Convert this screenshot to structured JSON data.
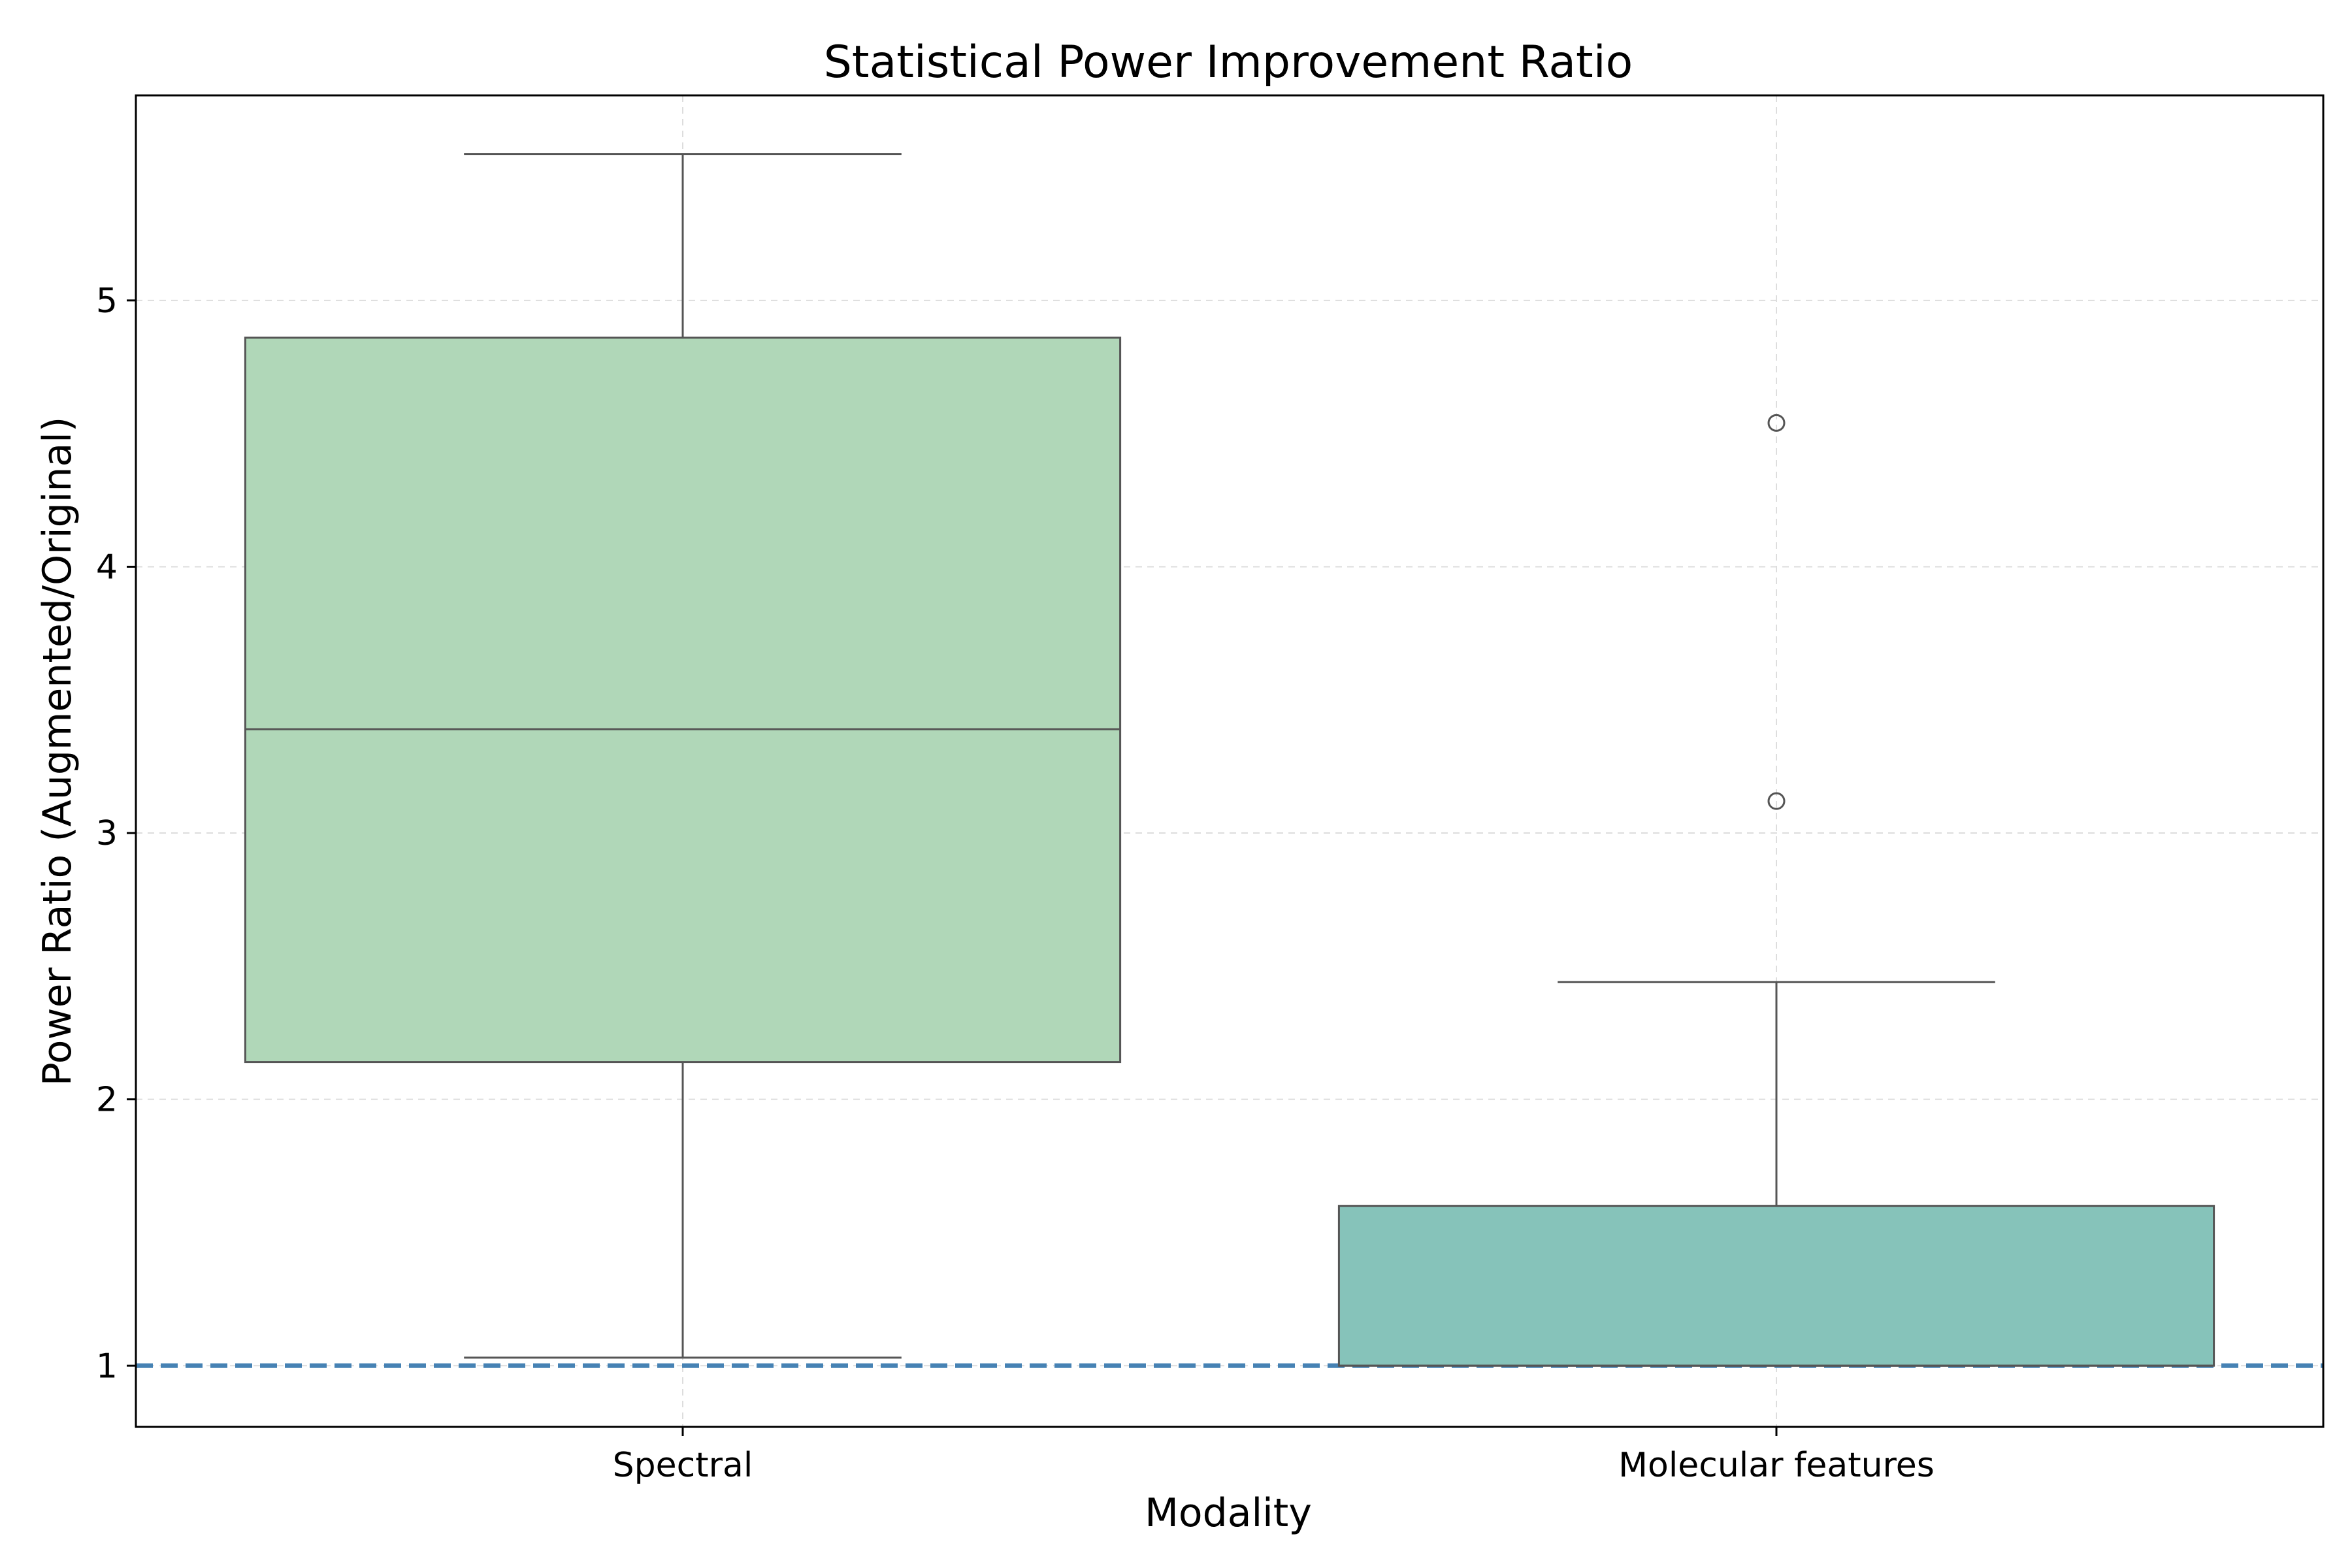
{
  "chart_data": {
    "type": "box",
    "title": "Statistical Power Improvement Ratio",
    "xlabel": "Modality",
    "ylabel": "Power Ratio (Augmented/Original)",
    "ylim": [
      0.77,
      5.77
    ],
    "yticks": [
      1,
      2,
      3,
      4,
      5
    ],
    "grid": true,
    "reference_line": {
      "y": 1.0,
      "style": "dashed",
      "color": "#4682b4"
    },
    "categories": [
      "Spectral",
      "Molecular features"
    ],
    "boxes": [
      {
        "category": "Spectral",
        "whisker_low": 1.03,
        "q1": 2.14,
        "median": 3.39,
        "q3": 4.86,
        "whisker_high": 5.55,
        "outliers": [],
        "color": "#b0d7b8"
      },
      {
        "category": "Molecular features",
        "whisker_low": 1.0,
        "q1": 1.0,
        "median": 1.0,
        "q3": 1.6,
        "whisker_high": 2.44,
        "outliers": [
          3.12,
          4.54
        ],
        "color": "#86c3ba"
      }
    ],
    "colors": {
      "line": "#555555",
      "grid": "#dddddd",
      "frame": "#000000"
    }
  }
}
